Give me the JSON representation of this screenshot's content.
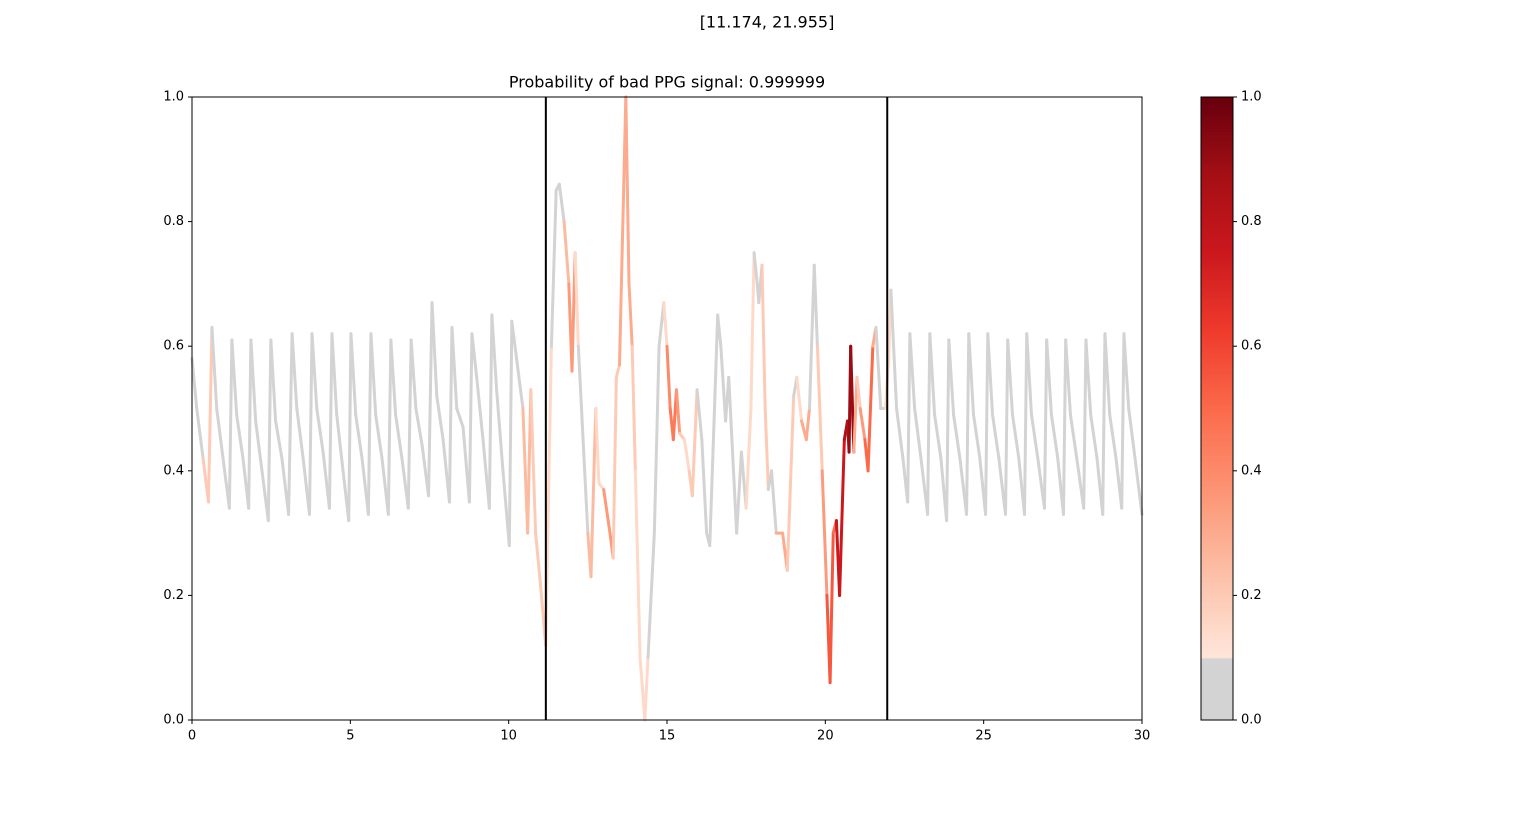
{
  "chart_data": {
    "type": "colored_line",
    "suptitle": "[11.174, 21.955]",
    "title": "Probability of bad PPG signal: 0.999999",
    "xlim": [
      0,
      30
    ],
    "ylim": [
      0,
      1
    ],
    "xticks": [
      0,
      5,
      10,
      15,
      20,
      25,
      30
    ],
    "yticks": [
      {
        "value": 0,
        "label": "0.0"
      },
      0.2,
      0.4,
      0.6,
      0.8,
      {
        "value": 1,
        "label": "1.0"
      }
    ],
    "vlines": [
      11.174,
      21.955
    ],
    "vline_color": "#000000",
    "colormap": "Reds",
    "under_color": "#d3d3d3",
    "colorbar": {
      "ylim": [
        0,
        1
      ],
      "yticks": [
        {
          "value": 0,
          "label": "0.0"
        },
        0.2,
        0.4,
        0.6,
        0.8,
        {
          "value": 1,
          "label": "1.0"
        }
      ],
      "gray_below": 0.1
    },
    "x": [
      0,
      0.15,
      0.35,
      0.52,
      0.63,
      0.78,
      0.98,
      1.18,
      1.26,
      1.41,
      1.61,
      1.79,
      1.86,
      2.01,
      2.21,
      2.41,
      2.49,
      2.64,
      2.84,
      3.05,
      3.16,
      3.31,
      3.51,
      3.71,
      3.79,
      3.94,
      4.14,
      4.34,
      4.42,
      4.57,
      4.77,
      4.95,
      5.02,
      5.17,
      5.37,
      5.57,
      5.65,
      5.8,
      6.0,
      6.2,
      6.28,
      6.43,
      6.63,
      6.83,
      6.92,
      7.07,
      7.27,
      7.47,
      7.58,
      7.73,
      7.93,
      8.13,
      8.21,
      8.36,
      8.56,
      8.76,
      8.84,
      8.99,
      9.19,
      9.39,
      9.47,
      9.62,
      9.82,
      10.02,
      10.1,
      10.25,
      10.45,
      10.6,
      10.7,
      10.85,
      11.0,
      11.17,
      11.35,
      11.5,
      11.6,
      11.75,
      11.9,
      12.0,
      12.1,
      12.2,
      12.35,
      12.5,
      12.6,
      12.75,
      12.85,
      13.0,
      13.2,
      13.3,
      13.4,
      13.5,
      13.7,
      13.75,
      13.8,
      13.9,
      14.0,
      14.15,
      14.3,
      14.4,
      14.6,
      14.75,
      14.9,
      15.0,
      15.1,
      15.2,
      15.3,
      15.4,
      15.55,
      15.7,
      15.8,
      15.95,
      16.1,
      16.25,
      16.35,
      16.5,
      16.6,
      16.7,
      16.85,
      16.95,
      17.05,
      17.2,
      17.35,
      17.5,
      17.65,
      17.75,
      17.85,
      17.9,
      18.0,
      18.1,
      18.2,
      18.3,
      18.45,
      18.65,
      18.8,
      19.0,
      19.1,
      19.25,
      19.4,
      19.5,
      19.65,
      19.75,
      19.9,
      20.05,
      20.15,
      20.25,
      20.35,
      20.45,
      20.6,
      20.7,
      20.75,
      20.8,
      20.9,
      21.0,
      21.1,
      21.25,
      21.35,
      21.5,
      21.6,
      21.75,
      21.9,
      22.0,
      22.07,
      22.25,
      22.45,
      22.6,
      22.67,
      22.82,
      23.02,
      23.23,
      23.3,
      23.45,
      23.65,
      23.83,
      23.9,
      24.05,
      24.25,
      24.46,
      24.53,
      24.68,
      24.88,
      25.06,
      25.13,
      25.28,
      25.48,
      25.69,
      25.76,
      25.91,
      26.11,
      26.29,
      26.36,
      26.51,
      26.71,
      26.92,
      26.99,
      27.14,
      27.34,
      27.52,
      27.59,
      27.74,
      27.94,
      28.16,
      28.23,
      28.38,
      28.58,
      28.76,
      28.83,
      28.98,
      29.18,
      29.36,
      29.43,
      29.58,
      29.78,
      30.0
    ],
    "values": [
      0.58,
      0.5,
      0.42,
      0.35,
      0.63,
      0.5,
      0.42,
      0.34,
      0.61,
      0.49,
      0.42,
      0.34,
      0.61,
      0.48,
      0.4,
      0.32,
      0.61,
      0.48,
      0.42,
      0.33,
      0.62,
      0.5,
      0.42,
      0.33,
      0.62,
      0.5,
      0.43,
      0.34,
      0.62,
      0.49,
      0.4,
      0.32,
      0.62,
      0.49,
      0.42,
      0.33,
      0.62,
      0.49,
      0.42,
      0.33,
      0.61,
      0.49,
      0.42,
      0.34,
      0.61,
      0.5,
      0.44,
      0.36,
      0.67,
      0.52,
      0.45,
      0.35,
      0.63,
      0.5,
      0.47,
      0.35,
      0.62,
      0.55,
      0.45,
      0.34,
      0.65,
      0.53,
      0.4,
      0.28,
      0.64,
      0.58,
      0.5,
      0.3,
      0.53,
      0.3,
      0.22,
      0.12,
      0.6,
      0.85,
      0.86,
      0.8,
      0.7,
      0.56,
      0.75,
      0.6,
      0.45,
      0.3,
      0.23,
      0.5,
      0.38,
      0.37,
      0.3,
      0.26,
      0.55,
      0.57,
      1.0,
      0.85,
      0.7,
      0.6,
      0.4,
      0.1,
      0,
      0.1,
      0.3,
      0.6,
      0.67,
      0.6,
      0.5,
      0.45,
      0.53,
      0.46,
      0.45,
      0.4,
      0.36,
      0.53,
      0.45,
      0.3,
      0.28,
      0.5,
      0.65,
      0.6,
      0.48,
      0.55,
      0.45,
      0.3,
      0.43,
      0.34,
      0.5,
      0.75,
      0.7,
      0.67,
      0.73,
      0.5,
      0.37,
      0.4,
      0.3,
      0.3,
      0.24,
      0.52,
      0.55,
      0.48,
      0.45,
      0.5,
      0.73,
      0.6,
      0.4,
      0.2,
      0.06,
      0.3,
      0.32,
      0.2,
      0.45,
      0.48,
      0.43,
      0.6,
      0.43,
      0.55,
      0.5,
      0.45,
      0.4,
      0.6,
      0.63,
      0.5,
      0.5,
      0.58,
      0.69,
      0.5,
      0.42,
      0.35,
      0.62,
      0.5,
      0.42,
      0.33,
      0.62,
      0.49,
      0.42,
      0.32,
      0.61,
      0.49,
      0.42,
      0.33,
      0.62,
      0.49,
      0.42,
      0.33,
      0.62,
      0.49,
      0.42,
      0.33,
      0.61,
      0.49,
      0.42,
      0.33,
      0.62,
      0.49,
      0.42,
      0.34,
      0.61,
      0.49,
      0.42,
      0.33,
      0.61,
      0.49,
      0.42,
      0.34,
      0.61,
      0.49,
      0.42,
      0.33,
      0.62,
      0.49,
      0.42,
      0.34,
      0.62,
      0.5,
      0.42,
      0.33
    ],
    "probability": [
      0,
      0,
      0,
      0.2,
      0,
      0,
      0,
      0,
      0,
      0,
      0,
      0,
      0,
      0,
      0,
      0,
      0,
      0,
      0,
      0,
      0,
      0,
      0,
      0,
      0,
      0,
      0,
      0,
      0,
      0,
      0,
      0,
      0,
      0,
      0,
      0,
      0,
      0,
      0,
      0,
      0,
      0,
      0,
      0,
      0,
      0,
      0,
      0,
      0,
      0,
      0,
      0,
      0,
      0,
      0,
      0,
      0,
      0,
      0,
      0,
      0,
      0,
      0,
      0,
      0,
      0,
      0,
      0.25,
      0.2,
      0.15,
      0.2,
      0.15,
      0,
      0,
      0,
      0,
      0.25,
      0.35,
      0.15,
      0,
      0,
      0,
      0.25,
      0.15,
      0,
      0.15,
      0.35,
      0,
      0.2,
      0,
      0.3,
      0.15,
      0.3,
      0.2,
      0,
      0.15,
      0.15,
      0,
      0,
      0,
      0,
      0.15,
      0.4,
      0.45,
      0.35,
      0.2,
      0,
      0.15,
      0.2,
      0,
      0,
      0,
      0,
      0,
      0,
      0,
      0,
      0,
      0,
      0,
      0,
      0,
      0.15,
      0,
      0,
      0,
      0,
      0.2,
      0,
      0,
      0,
      0.3,
      0.2,
      0,
      0,
      0.15,
      0.3,
      0,
      0,
      0,
      0.2,
      0.35,
      0.55,
      0.35,
      0.5,
      0.75,
      0.6,
      0.85,
      0.7,
      0.9,
      0.3,
      0.2,
      0.15,
      0.35,
      0.5,
      0.3,
      0,
      0,
      0,
      0.15,
      0,
      0,
      0,
      0,
      0,
      0,
      0,
      0,
      0,
      0,
      0,
      0,
      0,
      0,
      0,
      0,
      0,
      0,
      0,
      0,
      0,
      0,
      0,
      0,
      0,
      0,
      0,
      0,
      0,
      0,
      0,
      0,
      0,
      0,
      0,
      0,
      0,
      0,
      0,
      0,
      0,
      0,
      0,
      0,
      0,
      0,
      0,
      0,
      0,
      0,
      0,
      0
    ]
  }
}
